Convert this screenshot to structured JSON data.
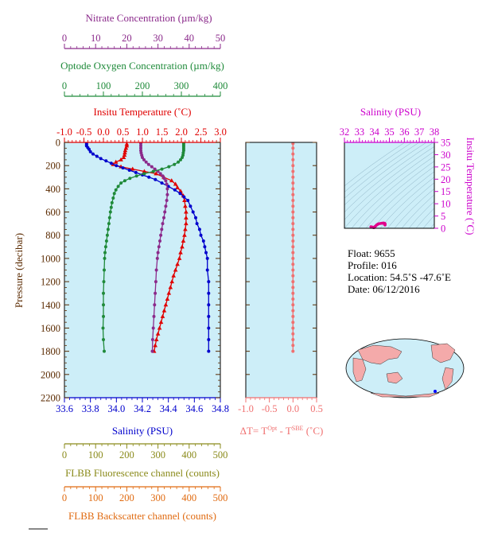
{
  "colors": {
    "nitrate": "#8b2a8b",
    "oxygen": "#1f8a3a",
    "temperature": "#e00000",
    "salinity": "#0000cc",
    "pressure": "#5a2a00",
    "delta_t": "#f07070",
    "fluorescence": "#8a8a1a",
    "backscatter": "#e06a10",
    "ts_axis": "#cc00cc",
    "plot_bg": "#cdeef8",
    "land": "#f4aaaa"
  },
  "axes": {
    "nitrate": {
      "label": "Nitrate Concentration (µm/kg)",
      "ticks": [
        "0",
        "10",
        "20",
        "30",
        "40",
        "50"
      ]
    },
    "oxygen": {
      "label": "Optode Oxygen Concentration (µm/kg)",
      "ticks": [
        "0",
        "100",
        "200",
        "300",
        "400"
      ]
    },
    "temperature": {
      "label": "Insitu Temperature (˚C)",
      "ticks": [
        "-1.0",
        "-0.5",
        "0.0",
        "0.5",
        "1.0",
        "1.5",
        "2.0",
        "2.5",
        "3.0"
      ]
    },
    "salinity": {
      "label": "Salinity (PSU)",
      "ticks": [
        "33.6",
        "33.8",
        "34.0",
        "34.2",
        "34.4",
        "34.6",
        "34.8"
      ]
    },
    "pressure": {
      "label": "Pressure (decibar)",
      "ticks": [
        "0",
        "200",
        "400",
        "600",
        "800",
        "1000",
        "1200",
        "1400",
        "1600",
        "1800",
        "2000",
        "2200"
      ]
    },
    "delta_t": {
      "label_parts": [
        "ΔT= T",
        "Opt",
        " - T",
        "SBE",
        " (˚C)"
      ],
      "ticks": [
        "-1.0",
        "-0.5",
        "0.0",
        "0.5"
      ]
    },
    "fluorescence": {
      "label": "FLBB Fluorescence channel (counts)",
      "ticks": [
        "0",
        "100",
        "200",
        "300",
        "400",
        "500"
      ]
    },
    "backscatter": {
      "label": "FLBB Backscatter channel (counts)",
      "ticks": [
        "0",
        "100",
        "200",
        "300",
        "400",
        "500"
      ]
    },
    "ts_salinity": {
      "label": "Salinity (PSU)",
      "ticks": [
        "32",
        "33",
        "34",
        "35",
        "36",
        "37",
        "38"
      ]
    },
    "ts_temperature": {
      "label": "Insitu Temperature (˚C)",
      "ticks": [
        "0",
        "5",
        "10",
        "15",
        "20",
        "25",
        "30",
        "35"
      ]
    }
  },
  "info": {
    "float": "Float:  9655",
    "profile": "Profile:  016",
    "location": "Location:  54.5˚S  -47.6˚E",
    "date": "Date:  06/12/2016"
  },
  "chart_data": [
    {
      "type": "line",
      "orientation": "profile",
      "ylabel": "Pressure (decibar)",
      "ylim": [
        2200,
        0
      ],
      "series": [
        {
          "name": "Insitu Temperature (˚C)",
          "xlim": [
            -1.0,
            3.0
          ],
          "values": [
            [
              0.6,
              15
            ],
            [
              0.6,
              30
            ],
            [
              0.58,
              50
            ],
            [
              0.56,
              70
            ],
            [
              0.55,
              90
            ],
            [
              0.54,
              110
            ],
            [
              0.52,
              130
            ],
            [
              0.45,
              150
            ],
            [
              0.32,
              170
            ],
            [
              0.25,
              190
            ],
            [
              0.45,
              210
            ],
            [
              0.75,
              230
            ],
            [
              1.05,
              250
            ],
            [
              1.35,
              270
            ],
            [
              1.55,
              300
            ],
            [
              1.75,
              330
            ],
            [
              1.85,
              360
            ],
            [
              1.9,
              390
            ],
            [
              1.98,
              420
            ],
            [
              2.05,
              460
            ],
            [
              2.08,
              500
            ],
            [
              2.1,
              550
            ],
            [
              2.12,
              600
            ],
            [
              2.12,
              650
            ],
            [
              2.12,
              700
            ],
            [
              2.1,
              750
            ],
            [
              2.08,
              800
            ],
            [
              2.05,
              850
            ],
            [
              2.02,
              900
            ],
            [
              1.98,
              950
            ],
            [
              1.95,
              1000
            ],
            [
              1.9,
              1050
            ],
            [
              1.85,
              1100
            ],
            [
              1.8,
              1150
            ],
            [
              1.76,
              1200
            ],
            [
              1.72,
              1250
            ],
            [
              1.68,
              1300
            ],
            [
              1.64,
              1350
            ],
            [
              1.6,
              1400
            ],
            [
              1.56,
              1450
            ],
            [
              1.52,
              1500
            ],
            [
              1.48,
              1550
            ],
            [
              1.44,
              1600
            ],
            [
              1.4,
              1650
            ],
            [
              1.36,
              1700
            ],
            [
              1.33,
              1750
            ],
            [
              1.3,
              1800
            ]
          ]
        },
        {
          "name": "Salinity (PSU)",
          "xlim": [
            33.6,
            34.8
          ],
          "values": [
            [
              33.77,
              10
            ],
            [
              33.77,
              20
            ],
            [
              33.77,
              30
            ],
            [
              33.78,
              45
            ],
            [
              33.79,
              60
            ],
            [
              33.8,
              80
            ],
            [
              33.82,
              100
            ],
            [
              33.85,
              120
            ],
            [
              33.88,
              140
            ],
            [
              33.92,
              160
            ],
            [
              33.96,
              180
            ],
            [
              34.0,
              200
            ],
            [
              34.05,
              220
            ],
            [
              34.1,
              240
            ],
            [
              34.15,
              260
            ],
            [
              34.2,
              280
            ],
            [
              34.25,
              300
            ],
            [
              34.3,
              320
            ],
            [
              34.35,
              350
            ],
            [
              34.4,
              380
            ],
            [
              34.45,
              410
            ],
            [
              34.49,
              440
            ],
            [
              34.52,
              470
            ],
            [
              34.55,
              500
            ],
            [
              34.57,
              550
            ],
            [
              34.59,
              600
            ],
            [
              34.61,
              650
            ],
            [
              34.62,
              700
            ],
            [
              34.64,
              750
            ],
            [
              34.65,
              800
            ],
            [
              34.67,
              850
            ],
            [
              34.68,
              900
            ],
            [
              34.69,
              950
            ],
            [
              34.7,
              1000
            ],
            [
              34.7,
              1100
            ],
            [
              34.71,
              1200
            ],
            [
              34.71,
              1300
            ],
            [
              34.71,
              1400
            ],
            [
              34.71,
              1500
            ],
            [
              34.71,
              1600
            ],
            [
              34.71,
              1700
            ],
            [
              34.71,
              1800
            ]
          ]
        },
        {
          "name": "Nitrate Concentration (µm/kg)",
          "xlim": [
            0,
            50
          ],
          "values": [
            [
              24.5,
              10
            ],
            [
              24.5,
              30
            ],
            [
              24.5,
              50
            ],
            [
              24.5,
              70
            ],
            [
              24.6,
              90
            ],
            [
              24.8,
              110
            ],
            [
              25.0,
              130
            ],
            [
              25.5,
              150
            ],
            [
              26.2,
              170
            ],
            [
              27.0,
              190
            ],
            [
              28.0,
              210
            ],
            [
              29.0,
              230
            ],
            [
              30.0,
              250
            ],
            [
              30.8,
              270
            ],
            [
              31.5,
              290
            ],
            [
              32.0,
              310
            ],
            [
              32.5,
              330
            ],
            [
              32.8,
              360
            ],
            [
              33.0,
              400
            ],
            [
              33.0,
              450
            ],
            [
              32.8,
              500
            ],
            [
              32.5,
              550
            ],
            [
              32.2,
              600
            ],
            [
              31.9,
              650
            ],
            [
              31.5,
              700
            ],
            [
              31.2,
              750
            ],
            [
              30.9,
              800
            ],
            [
              30.6,
              850
            ],
            [
              30.3,
              900
            ],
            [
              30.0,
              950
            ],
            [
              29.8,
              1000
            ],
            [
              29.5,
              1100
            ],
            [
              29.3,
              1200
            ],
            [
              29.1,
              1300
            ],
            [
              28.9,
              1400
            ],
            [
              28.7,
              1500
            ],
            [
              28.5,
              1600
            ],
            [
              28.3,
              1700
            ],
            [
              28.2,
              1800
            ]
          ]
        },
        {
          "name": "Optode Oxygen Concentration (µm/kg)",
          "xlim": [
            0,
            400
          ],
          "values": [
            [
              306,
              10
            ],
            [
              306,
              25
            ],
            [
              306,
              40
            ],
            [
              306,
              55
            ],
            [
              306,
              70
            ],
            [
              305,
              90
            ],
            [
              304,
              110
            ],
            [
              302,
              130
            ],
            [
              298,
              150
            ],
            [
              292,
              170
            ],
            [
              282,
              190
            ],
            [
              268,
              210
            ],
            [
              250,
              230
            ],
            [
              228,
              250
            ],
            [
              205,
              270
            ],
            [
              185,
              290
            ],
            [
              168,
              310
            ],
            [
              155,
              330
            ],
            [
              145,
              350
            ],
            [
              138,
              380
            ],
            [
              132,
              410
            ],
            [
              128,
              440
            ],
            [
              125,
              480
            ],
            [
              122,
              520
            ],
            [
              120,
              560
            ],
            [
              118,
              600
            ],
            [
              116,
              650
            ],
            [
              114,
              700
            ],
            [
              112,
              750
            ],
            [
              110,
              800
            ],
            [
              108,
              850
            ],
            [
              106,
              900
            ],
            [
              104,
              950
            ],
            [
              103,
              1000
            ],
            [
              102,
              1100
            ],
            [
              101,
              1200
            ],
            [
              100,
              1300
            ],
            [
              100,
              1400
            ],
            [
              100,
              1500
            ],
            [
              99,
              1600
            ],
            [
              100,
              1700
            ],
            [
              102,
              1800
            ]
          ]
        },
        {
          "name": "ΔT= TOpt - TSBE (˚C)",
          "xlim": [
            -1.0,
            0.5
          ],
          "values": [
            [
              0.0,
              10
            ],
            [
              0.0,
              50
            ],
            [
              0.0,
              100
            ],
            [
              0.0,
              150
            ],
            [
              0.0,
              200
            ],
            [
              0.0,
              250
            ],
            [
              0.0,
              300
            ],
            [
              0.0,
              350
            ],
            [
              0.0,
              400
            ],
            [
              0.0,
              450
            ],
            [
              0.0,
              500
            ],
            [
              0.0,
              550
            ],
            [
              0.0,
              600
            ],
            [
              0.0,
              650
            ],
            [
              0.0,
              700
            ],
            [
              0.0,
              750
            ],
            [
              0.0,
              800
            ],
            [
              0.0,
              850
            ],
            [
              0.0,
              900
            ],
            [
              0.0,
              950
            ],
            [
              0.0,
              1000
            ],
            [
              0.0,
              1050
            ],
            [
              0.0,
              1100
            ],
            [
              0.0,
              1150
            ],
            [
              0.0,
              1200
            ],
            [
              0.0,
              1250
            ],
            [
              0.0,
              1300
            ],
            [
              0.0,
              1350
            ],
            [
              0.0,
              1400
            ],
            [
              0.0,
              1450
            ],
            [
              0.0,
              1500
            ],
            [
              0.0,
              1550
            ],
            [
              0.0,
              1600
            ],
            [
              0.0,
              1650
            ],
            [
              0.0,
              1700
            ],
            [
              0.0,
              1750
            ],
            [
              0.0,
              1800
            ]
          ]
        }
      ]
    },
    {
      "type": "scatter",
      "xlabel": "Salinity (PSU)",
      "ylabel": "Insitu Temperature (˚C)",
      "xlim": [
        32,
        38
      ],
      "ylim": [
        0,
        35
      ],
      "values": [
        [
          33.77,
          0.6
        ],
        [
          33.78,
          0.56
        ],
        [
          33.82,
          0.52
        ],
        [
          33.88,
          0.45
        ],
        [
          33.92,
          0.32
        ],
        [
          33.96,
          0.25
        ],
        [
          34.0,
          0.45
        ],
        [
          34.05,
          0.75
        ],
        [
          34.1,
          1.05
        ],
        [
          34.15,
          1.35
        ],
        [
          34.2,
          1.55
        ],
        [
          34.25,
          1.75
        ],
        [
          34.3,
          1.85
        ],
        [
          34.4,
          1.98
        ],
        [
          34.49,
          2.05
        ],
        [
          34.55,
          2.08
        ],
        [
          34.59,
          2.12
        ],
        [
          34.62,
          2.12
        ],
        [
          34.65,
          2.08
        ],
        [
          34.68,
          2.02
        ],
        [
          34.7,
          1.95
        ],
        [
          34.7,
          1.85
        ],
        [
          34.71,
          1.76
        ],
        [
          34.71,
          1.6
        ],
        [
          34.71,
          1.44
        ],
        [
          34.71,
          1.3
        ]
      ]
    }
  ]
}
